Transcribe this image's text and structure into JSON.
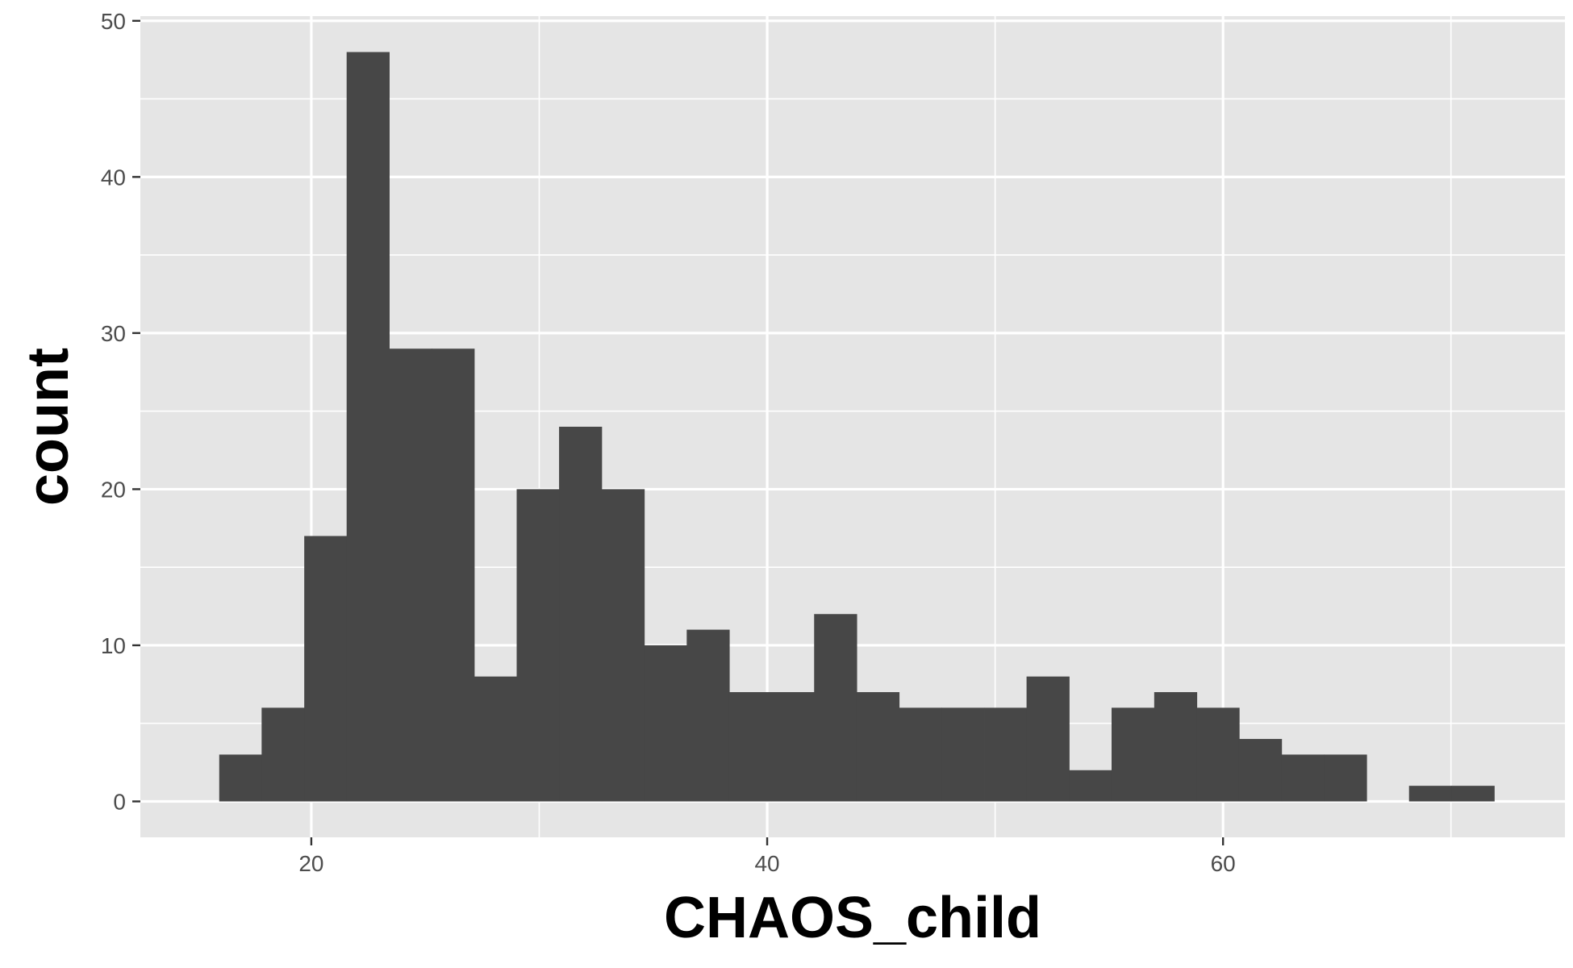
{
  "chart_data": {
    "type": "bar",
    "xlabel": "CHAOS_child",
    "ylabel": "count",
    "xlim": [
      12.5,
      75.0
    ],
    "ylim": [
      -2.3,
      50.3
    ],
    "x_ticks": [
      20,
      40,
      60
    ],
    "y_ticks": [
      0,
      10,
      20,
      30,
      40,
      50
    ],
    "bin_width": 1.864,
    "bins": [
      {
        "x0": 15.96,
        "count": 3
      },
      {
        "x0": 17.82,
        "count": 6
      },
      {
        "x0": 19.69,
        "count": 17
      },
      {
        "x0": 21.55,
        "count": 48
      },
      {
        "x0": 23.42,
        "count": 29
      },
      {
        "x0": 25.28,
        "count": 29
      },
      {
        "x0": 27.14,
        "count": 8
      },
      {
        "x0": 29.01,
        "count": 20
      },
      {
        "x0": 30.87,
        "count": 24
      },
      {
        "x0": 32.74,
        "count": 20
      },
      {
        "x0": 34.6,
        "count": 10
      },
      {
        "x0": 36.47,
        "count": 11
      },
      {
        "x0": 38.33,
        "count": 7
      },
      {
        "x0": 40.2,
        "count": 7
      },
      {
        "x0": 42.06,
        "count": 12
      },
      {
        "x0": 43.92,
        "count": 7
      },
      {
        "x0": 45.79,
        "count": 6
      },
      {
        "x0": 47.65,
        "count": 6
      },
      {
        "x0": 49.52,
        "count": 6
      },
      {
        "x0": 51.38,
        "count": 8
      },
      {
        "x0": 53.25,
        "count": 2
      },
      {
        "x0": 55.11,
        "count": 6
      },
      {
        "x0": 56.98,
        "count": 7
      },
      {
        "x0": 58.84,
        "count": 6
      },
      {
        "x0": 60.7,
        "count": 4
      },
      {
        "x0": 62.57,
        "count": 3
      },
      {
        "x0": 64.43,
        "count": 3
      },
      {
        "x0": 66.3,
        "count": 0
      },
      {
        "x0": 68.16,
        "count": 1
      },
      {
        "x0": 70.03,
        "count": 1
      }
    ],
    "grid": true,
    "bar_color": "#474747",
    "panel_color": "#e5e5e5",
    "grid_color": "#ffffff"
  }
}
